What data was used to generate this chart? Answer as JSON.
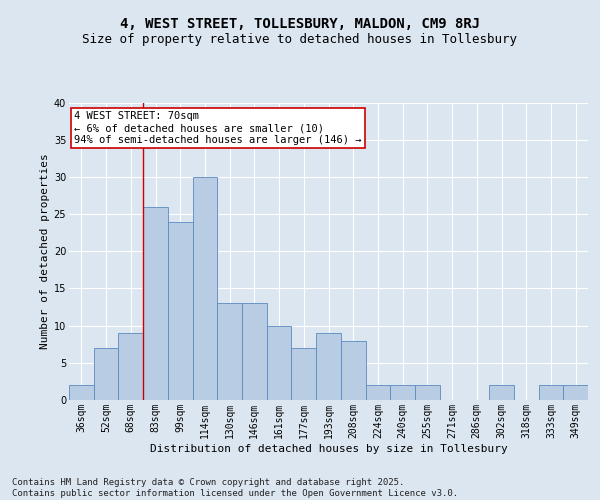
{
  "title": "4, WEST STREET, TOLLESBURY, MALDON, CM9 8RJ",
  "subtitle": "Size of property relative to detached houses in Tollesbury",
  "xlabel": "Distribution of detached houses by size in Tollesbury",
  "ylabel": "Number of detached properties",
  "categories": [
    "36sqm",
    "52sqm",
    "68sqm",
    "83sqm",
    "99sqm",
    "114sqm",
    "130sqm",
    "146sqm",
    "161sqm",
    "177sqm",
    "193sqm",
    "208sqm",
    "224sqm",
    "240sqm",
    "255sqm",
    "271sqm",
    "286sqm",
    "302sqm",
    "318sqm",
    "333sqm",
    "349sqm"
  ],
  "values": [
    2,
    7,
    9,
    26,
    24,
    30,
    13,
    13,
    10,
    7,
    9,
    8,
    2,
    2,
    2,
    0,
    0,
    2,
    0,
    2,
    2
  ],
  "bar_color": "#b8cce4",
  "bar_edge_color": "#5a8abf",
  "bg_color": "#dce6f1",
  "plot_bg_color": "#dce6f1",
  "grid_color": "#ffffff",
  "annotation_line1": "4 WEST STREET: 70sqm",
  "annotation_line2": "← 6% of detached houses are smaller (10)",
  "annotation_line3": "94% of semi-detached houses are larger (146) →",
  "annotation_box_color": "#ffffff",
  "annotation_box_edge": "#cc0000",
  "ylim": [
    0,
    40
  ],
  "yticks": [
    0,
    5,
    10,
    15,
    20,
    25,
    30,
    35,
    40
  ],
  "footer": "Contains HM Land Registry data © Crown copyright and database right 2025.\nContains public sector information licensed under the Open Government Licence v3.0.",
  "title_fontsize": 10,
  "subtitle_fontsize": 9,
  "axis_label_fontsize": 8,
  "tick_fontsize": 7,
  "annotation_fontsize": 7.5,
  "footer_fontsize": 6.5
}
